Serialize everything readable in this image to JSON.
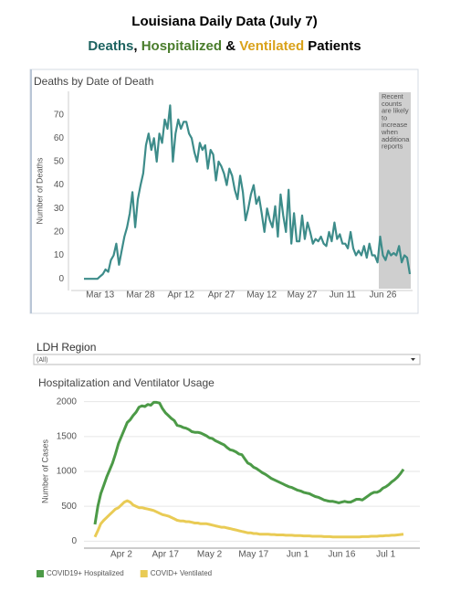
{
  "header": {
    "title": "Louisiana Daily Data (July 7)",
    "subtitle": [
      "Deaths",
      ", ",
      "Hospitalized",
      " & ",
      "Ventilated",
      " Patients"
    ]
  },
  "filter": {
    "label": "LDH Region",
    "value": "(All)"
  },
  "chart_data": [
    {
      "type": "line",
      "title": "Deaths by Date of Death",
      "ylabel": "Number of Deaths",
      "color": "#3d8c8a",
      "grid": false,
      "annotation": [
        "Recent",
        "counts",
        "are likely",
        "to",
        "increase",
        "when",
        "additiona",
        "reports"
      ],
      "categories": [
        "Mar 7",
        "Mar 8",
        "Mar 9",
        "Mar 10",
        "Mar 11",
        "Mar 12",
        "Mar 13",
        "Mar 14",
        "Mar 15",
        "Mar 16",
        "Mar 17",
        "Mar 18",
        "Mar 19",
        "Mar 20",
        "Mar 21",
        "Mar 22",
        "Mar 23",
        "Mar 24",
        "Mar 25",
        "Mar 26",
        "Mar 27",
        "Mar 28",
        "Mar 29",
        "Mar 30",
        "Mar 31",
        "Apr 1",
        "Apr 2",
        "Apr 3",
        "Apr 4",
        "Apr 5",
        "Apr 6",
        "Apr 7",
        "Apr 8",
        "Apr 9",
        "Apr 10",
        "Apr 11",
        "Apr 12",
        "Apr 13",
        "Apr 14",
        "Apr 15",
        "Apr 16",
        "Apr 17",
        "Apr 18",
        "Apr 19",
        "Apr 20",
        "Apr 21",
        "Apr 22",
        "Apr 23",
        "Apr 24",
        "Apr 25",
        "Apr 26",
        "Apr 27",
        "Apr 28",
        "Apr 29",
        "Apr 30",
        "May 1",
        "May 2",
        "May 3",
        "May 4",
        "May 5",
        "May 6",
        "May 7",
        "May 8",
        "May 9",
        "May 10",
        "May 11",
        "May 12",
        "May 13",
        "May 14",
        "May 15",
        "May 16",
        "May 17",
        "May 18",
        "May 19",
        "May 20",
        "May 21",
        "May 22",
        "May 23",
        "May 24",
        "May 25",
        "May 26",
        "May 27",
        "May 28",
        "May 29",
        "May 30",
        "May 31",
        "Jun 1",
        "Jun 2",
        "Jun 3",
        "Jun 4",
        "Jun 5",
        "Jun 6",
        "Jun 7",
        "Jun 8",
        "Jun 9",
        "Jun 10",
        "Jun 11",
        "Jun 12",
        "Jun 13",
        "Jun 14",
        "Jun 15",
        "Jun 16",
        "Jun 17",
        "Jun 18",
        "Jun 19",
        "Jun 20",
        "Jun 21",
        "Jun 22",
        "Jun 23",
        "Jun 24",
        "Jun 25",
        "Jun 26",
        "Jun 27",
        "Jun 28",
        "Jun 29",
        "Jun 30",
        "Jul 1",
        "Jul 2",
        "Jul 3",
        "Jul 4",
        "Jul 5",
        "Jul 6"
      ],
      "values": [
        0,
        0,
        0,
        0,
        0,
        0,
        1,
        2,
        4,
        3,
        8,
        10,
        15,
        6,
        12,
        18,
        22,
        28,
        37,
        22,
        34,
        40,
        45,
        57,
        62,
        55,
        60,
        50,
        62,
        58,
        68,
        64,
        74,
        50,
        62,
        68,
        64,
        67,
        67,
        62,
        60,
        54,
        50,
        58,
        55,
        57,
        47,
        55,
        53,
        42,
        50,
        48,
        45,
        40,
        47,
        44,
        38,
        34,
        44,
        37,
        25,
        30,
        36,
        40,
        32,
        35,
        28,
        20,
        30,
        25,
        22,
        31,
        18,
        36,
        27,
        20,
        38,
        15,
        28,
        16,
        16,
        27,
        17,
        24,
        20,
        15,
        17,
        16,
        18,
        15,
        14,
        20,
        16,
        24,
        17,
        19,
        15,
        15,
        13,
        20,
        13,
        10,
        12,
        10,
        14,
        9,
        15,
        10,
        10,
        7,
        18,
        10,
        8,
        12,
        10,
        11,
        10,
        14,
        7,
        10,
        9,
        2
      ],
      "xticks": [
        "Mar 13",
        "Mar 28",
        "Apr 12",
        "Apr 27",
        "May 12",
        "May 27",
        "Jun 11",
        "Jun 26"
      ],
      "ylim": [
        -5,
        80
      ],
      "yticks": [
        0,
        10,
        20,
        30,
        40,
        50,
        60,
        70
      ]
    },
    {
      "type": "line",
      "title": "Hospitalization and Ventilator Usage",
      "ylabel": "Number of Cases",
      "grid": true,
      "legend": "bottom-left",
      "categories": [
        "Mar 24",
        "Mar 25",
        "Mar 26",
        "Mar 27",
        "Mar 28",
        "Mar 29",
        "Mar 30",
        "Mar 31",
        "Apr 1",
        "Apr 2",
        "Apr 3",
        "Apr 4",
        "Apr 5",
        "Apr 6",
        "Apr 7",
        "Apr 8",
        "Apr 9",
        "Apr 10",
        "Apr 11",
        "Apr 12",
        "Apr 13",
        "Apr 14",
        "Apr 15",
        "Apr 16",
        "Apr 17",
        "Apr 18",
        "Apr 19",
        "Apr 20",
        "Apr 21",
        "Apr 22",
        "Apr 23",
        "Apr 24",
        "Apr 25",
        "Apr 26",
        "Apr 27",
        "Apr 28",
        "Apr 29",
        "Apr 30",
        "May 1",
        "May 2",
        "May 3",
        "May 4",
        "May 5",
        "May 6",
        "May 7",
        "May 8",
        "May 9",
        "May 10",
        "May 11",
        "May 12",
        "May 13",
        "May 14",
        "May 15",
        "May 16",
        "May 17",
        "May 18",
        "May 19",
        "May 20",
        "May 21",
        "May 22",
        "May 23",
        "May 24",
        "May 25",
        "May 26",
        "May 27",
        "May 28",
        "May 29",
        "May 30",
        "May 31",
        "Jun 1",
        "Jun 2",
        "Jun 3",
        "Jun 4",
        "Jun 5",
        "Jun 6",
        "Jun 7",
        "Jun 8",
        "Jun 9",
        "Jun 10",
        "Jun 11",
        "Jun 12",
        "Jun 13",
        "Jun 14",
        "Jun 15",
        "Jun 16",
        "Jun 17",
        "Jun 18",
        "Jun 19",
        "Jun 20",
        "Jun 21",
        "Jun 22",
        "Jun 23",
        "Jun 24",
        "Jun 25",
        "Jun 26",
        "Jun 27",
        "Jun 28",
        "Jun 29",
        "Jun 30",
        "Jul 1",
        "Jul 2",
        "Jul 3",
        "Jul 4",
        "Jul 5",
        "Jul 6",
        "Jul 7"
      ],
      "series": [
        {
          "name": "COVID19+ Hospitalized",
          "color": "#4c9a47",
          "values": [
            240,
            500,
            680,
            800,
            920,
            1020,
            1120,
            1250,
            1400,
            1500,
            1600,
            1700,
            1740,
            1800,
            1850,
            1920,
            1940,
            1930,
            1960,
            1950,
            1990,
            1990,
            1980,
            1900,
            1840,
            1800,
            1760,
            1730,
            1660,
            1650,
            1630,
            1620,
            1600,
            1570,
            1560,
            1560,
            1550,
            1530,
            1510,
            1480,
            1470,
            1440,
            1420,
            1400,
            1380,
            1340,
            1310,
            1300,
            1280,
            1250,
            1240,
            1180,
            1120,
            1100,
            1060,
            1040,
            1010,
            980,
            960,
            930,
            900,
            880,
            860,
            840,
            820,
            800,
            780,
            770,
            750,
            730,
            720,
            700,
            690,
            680,
            660,
            640,
            630,
            610,
            590,
            580,
            570,
            570,
            560,
            550,
            560,
            570,
            560,
            560,
            580,
            600,
            600,
            590,
            620,
            650,
            680,
            700,
            700,
            720,
            760,
            780,
            810,
            850,
            880,
            920,
            970,
            1030
          ]
        },
        {
          "name": "COVID+ Ventilated",
          "color": "#e9cb55",
          "values": [
            60,
            150,
            250,
            300,
            340,
            380,
            420,
            460,
            480,
            520,
            560,
            580,
            560,
            520,
            500,
            480,
            480,
            470,
            460,
            450,
            440,
            420,
            400,
            380,
            370,
            360,
            340,
            320,
            300,
            290,
            290,
            280,
            280,
            270,
            260,
            260,
            250,
            250,
            250,
            240,
            230,
            220,
            210,
            200,
            200,
            190,
            180,
            170,
            160,
            150,
            140,
            130,
            120,
            120,
            110,
            110,
            100,
            100,
            100,
            100,
            95,
            95,
            90,
            90,
            90,
            85,
            85,
            85,
            80,
            80,
            80,
            75,
            75,
            75,
            70,
            70,
            70,
            70,
            65,
            65,
            65,
            60,
            60,
            60,
            60,
            60,
            60,
            60,
            60,
            60,
            60,
            65,
            65,
            65,
            70,
            70,
            70,
            75,
            75,
            80,
            80,
            85,
            85,
            90,
            95,
            100
          ]
        }
      ],
      "xticks": [
        "Apr 2",
        "Apr 17",
        "May 2",
        "May 17",
        "Jun 1",
        "Jun 16",
        "Jul 1"
      ],
      "ylim": [
        -100,
        2100
      ],
      "yticks": [
        0,
        500,
        1000,
        1500,
        2000
      ]
    }
  ]
}
